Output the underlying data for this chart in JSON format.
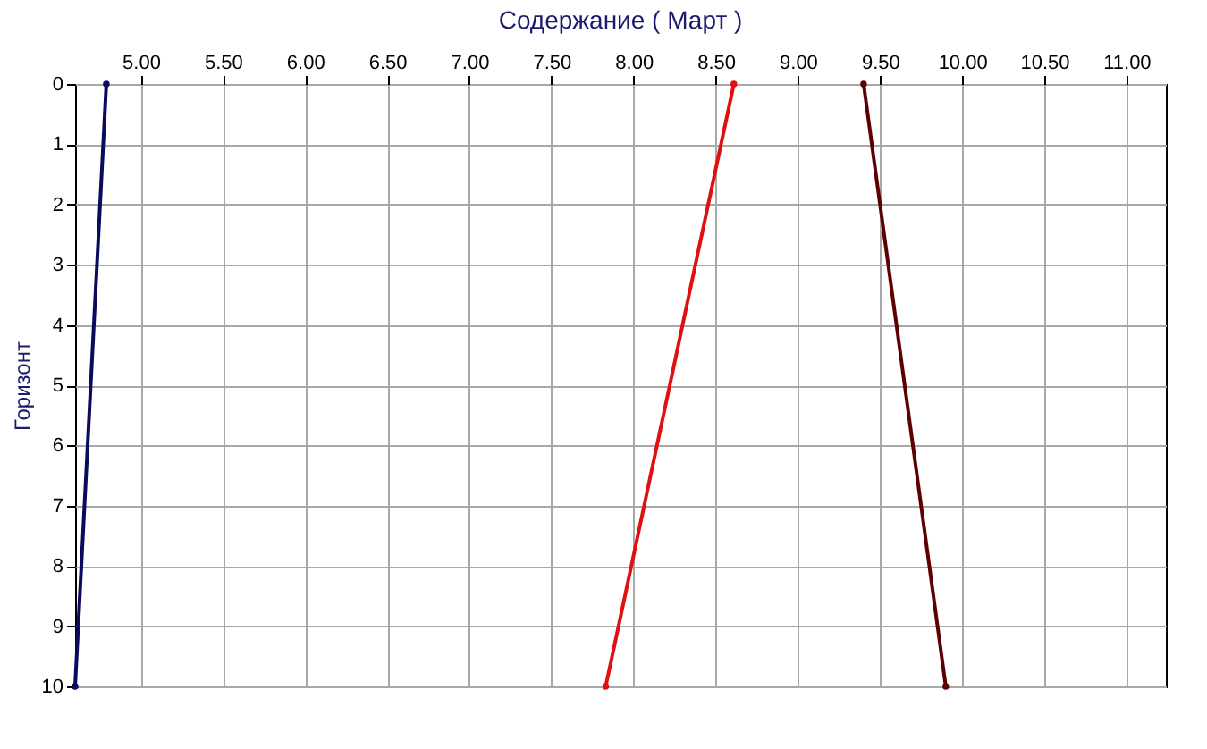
{
  "chart_data": {
    "type": "line",
    "title": "Содержание    ( Март )",
    "ylabel": "Горизонт",
    "series": [
      {
        "color": "#0a0a5e",
        "x": [
          4.79,
          4.6
        ],
        "values": [
          0,
          10
        ]
      },
      {
        "color": "#e01010",
        "x": [
          8.61,
          7.83
        ],
        "values": [
          0,
          10
        ]
      },
      {
        "color": "#5c0000",
        "x": [
          9.4,
          9.9
        ],
        "values": [
          0,
          10
        ]
      }
    ],
    "xlim": [
      4.6,
      11.24
    ],
    "xticks": [
      {
        "value": 5,
        "label": "5.00"
      },
      {
        "value": 5.5,
        "label": "5.50"
      },
      {
        "value": 6,
        "label": "6.00"
      },
      {
        "value": 6.5,
        "label": "6.50"
      },
      {
        "value": 7,
        "label": "7.00"
      },
      {
        "value": 7.5,
        "label": "7.50"
      },
      {
        "value": 8,
        "label": "8.00"
      },
      {
        "value": 8.5,
        "label": "8.50"
      },
      {
        "value": 9,
        "label": "9.00"
      },
      {
        "value": 9.5,
        "label": "9.50"
      },
      {
        "value": 10,
        "label": "10.00"
      },
      {
        "value": 10.5,
        "label": "10.50"
      },
      {
        "value": 11,
        "label": "11.00"
      }
    ],
    "ylim": [
      10,
      0
    ],
    "yticks": [
      0,
      1,
      2,
      3,
      4,
      5,
      6,
      7,
      8,
      9,
      10
    ],
    "grid": true,
    "marker": "circle",
    "line_style": "solid"
  }
}
